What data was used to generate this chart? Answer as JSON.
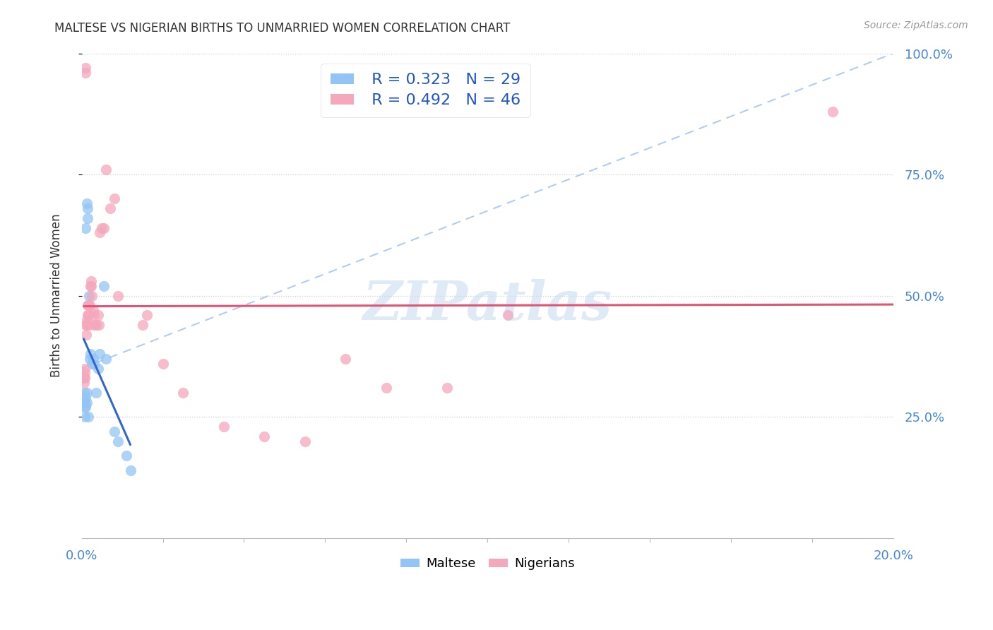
{
  "title": "MALTESE VS NIGERIAN BIRTHS TO UNMARRIED WOMEN CORRELATION CHART",
  "source": "Source: ZipAtlas.com",
  "ylabel": "Births to Unmarried Women",
  "xlim": [
    0.0,
    20.0
  ],
  "ylim": [
    0.0,
    100.0
  ],
  "ytick_labels": [
    "25.0%",
    "50.0%",
    "75.0%",
    "100.0%"
  ],
  "legend_r_blue": "R = 0.323",
  "legend_n_blue": "N = 29",
  "legend_r_pink": "R = 0.492",
  "legend_n_pink": "N = 46",
  "blue_color": "#92c5f5",
  "pink_color": "#f5a7bc",
  "blue_line_color": "#3366cc",
  "pink_line_color": "#e05575",
  "diag_color": "#a8c8f0",
  "watermark_color": "#ddeeff",
  "maltese_points": [
    [
      0.05,
      30
    ],
    [
      0.07,
      28
    ],
    [
      0.08,
      28
    ],
    [
      0.08,
      27
    ],
    [
      0.08,
      25
    ],
    [
      0.1,
      29
    ],
    [
      0.1,
      27
    ],
    [
      0.12,
      30
    ],
    [
      0.12,
      28
    ],
    [
      0.13,
      69
    ],
    [
      0.14,
      66
    ],
    [
      0.16,
      25
    ],
    [
      0.18,
      50
    ],
    [
      0.2,
      37
    ],
    [
      0.22,
      38
    ],
    [
      0.25,
      36
    ],
    [
      0.28,
      37
    ],
    [
      0.3,
      36
    ],
    [
      0.35,
      30
    ],
    [
      0.4,
      35
    ],
    [
      0.45,
      38
    ],
    [
      0.55,
      52
    ],
    [
      0.6,
      37
    ],
    [
      0.8,
      22
    ],
    [
      0.9,
      20
    ],
    [
      1.1,
      17
    ],
    [
      1.2,
      14
    ],
    [
      0.1,
      64
    ],
    [
      0.15,
      68
    ]
  ],
  "nigerians_points": [
    [
      0.05,
      33
    ],
    [
      0.06,
      32
    ],
    [
      0.07,
      34
    ],
    [
      0.08,
      33
    ],
    [
      0.08,
      35
    ],
    [
      0.09,
      97
    ],
    [
      0.1,
      96
    ],
    [
      0.1,
      44
    ],
    [
      0.11,
      42
    ],
    [
      0.12,
      45
    ],
    [
      0.13,
      44
    ],
    [
      0.14,
      46
    ],
    [
      0.15,
      48
    ],
    [
      0.16,
      48
    ],
    [
      0.17,
      46
    ],
    [
      0.18,
      44
    ],
    [
      0.2,
      48
    ],
    [
      0.22,
      52
    ],
    [
      0.23,
      53
    ],
    [
      0.24,
      52
    ],
    [
      0.25,
      50
    ],
    [
      0.28,
      47
    ],
    [
      0.3,
      46
    ],
    [
      0.32,
      44
    ],
    [
      0.35,
      44
    ],
    [
      0.4,
      46
    ],
    [
      0.42,
      44
    ],
    [
      0.45,
      63
    ],
    [
      0.5,
      64
    ],
    [
      0.55,
      64
    ],
    [
      0.6,
      76
    ],
    [
      0.7,
      68
    ],
    [
      0.8,
      70
    ],
    [
      1.5,
      44
    ],
    [
      1.6,
      46
    ],
    [
      2.0,
      36
    ],
    [
      2.5,
      30
    ],
    [
      3.5,
      23
    ],
    [
      4.5,
      21
    ],
    [
      5.5,
      20
    ],
    [
      6.5,
      37
    ],
    [
      7.5,
      31
    ],
    [
      9.0,
      31
    ],
    [
      10.5,
      46
    ],
    [
      18.5,
      88
    ],
    [
      0.9,
      50
    ]
  ]
}
